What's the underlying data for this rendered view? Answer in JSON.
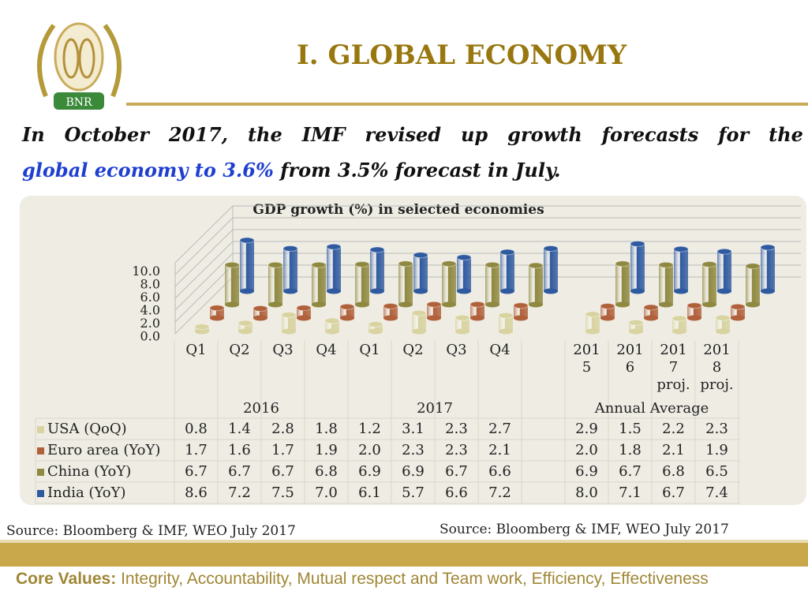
{
  "header": {
    "title": "I. GLOBAL ECONOMY",
    "logo_text": "BNR"
  },
  "subtitle": {
    "line1": [
      "In",
      "October",
      "2017,",
      "the",
      "IMF",
      "revised",
      "up",
      "growth",
      "forecasts",
      "for",
      "the"
    ],
    "line2_blue": "global economy to 3.6%",
    "line2_rest": " from 3.5% forecast in July."
  },
  "chart_data": {
    "type": "bar",
    "style": "3d-cylinder",
    "title": "GDP growth (%) in selected economies",
    "y_ticks": [
      "10.0",
      "8.0",
      "6.0",
      "4.0",
      "2.0",
      "0.0"
    ],
    "ylim": [
      0,
      10
    ],
    "categories": [
      "Q1",
      "Q2",
      "Q3",
      "Q4",
      "Q1",
      "Q2",
      "Q3",
      "Q4",
      "",
      "2015",
      "2016",
      "2017 proj.",
      "2018 proj."
    ],
    "category_labels": [
      [
        "Q1"
      ],
      [
        "Q2"
      ],
      [
        "Q3"
      ],
      [
        "Q4"
      ],
      [
        "Q1"
      ],
      [
        "Q2"
      ],
      [
        "Q3"
      ],
      [
        "Q4"
      ],
      [],
      [
        "201",
        "5"
      ],
      [
        "201",
        "6"
      ],
      [
        "201",
        "7",
        "proj."
      ],
      [
        "201",
        "8",
        "proj."
      ]
    ],
    "groups": [
      {
        "label": "2016",
        "span": [
          0,
          3
        ]
      },
      {
        "label": "2017",
        "span": [
          4,
          7
        ]
      },
      {
        "label": "Annual Average",
        "span": [
          9,
          12
        ]
      }
    ],
    "series": [
      {
        "name": "USA (QoQ)",
        "color": "#d8d3a0",
        "values": [
          0.8,
          1.4,
          2.8,
          1.8,
          1.2,
          3.1,
          2.3,
          2.7,
          null,
          2.9,
          1.5,
          2.2,
          2.3
        ]
      },
      {
        "name": "Euro area (YoY)",
        "color": "#b0603a",
        "values": [
          1.7,
          1.6,
          1.7,
          1.9,
          2.0,
          2.3,
          2.3,
          2.1,
          null,
          2.0,
          1.8,
          2.1,
          1.9
        ]
      },
      {
        "name": "China (YoY)",
        "color": "#8f8840",
        "values": [
          6.7,
          6.7,
          6.7,
          6.8,
          6.9,
          6.9,
          6.7,
          6.6,
          null,
          6.9,
          6.7,
          6.8,
          6.5
        ]
      },
      {
        "name": "India (YoY)",
        "color": "#2f5aa0",
        "values": [
          8.6,
          7.2,
          7.5,
          7.0,
          6.1,
          5.7,
          6.6,
          7.2,
          null,
          8.0,
          7.1,
          6.7,
          7.4
        ]
      }
    ],
    "legend": "data-table-bottom",
    "grid": true
  },
  "sources": {
    "left": "Source: Bloomberg & IMF, WEO July 2017",
    "right": "Source: Bloomberg & IMF, WEO July 2017"
  },
  "footer": {
    "label": "Core Values:",
    "text": " Integrity, Accountability, Mutual respect and Team work, Efficiency, Effectiveness"
  }
}
